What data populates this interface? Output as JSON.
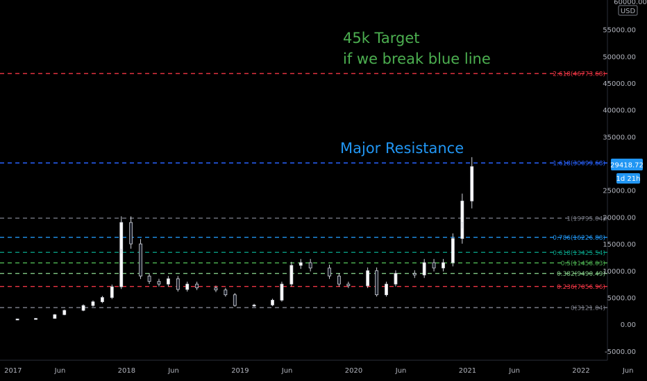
{
  "chart_data": {
    "type": "candlestick",
    "title": "",
    "xlabel": "",
    "ylabel": "",
    "currency_label": "USD",
    "ylim": [
      -6700,
      60500
    ],
    "grid": false,
    "x_ticks": [
      "2017",
      "Jun",
      "2018",
      "Jun",
      "2019",
      "Jun",
      "2020",
      "Jun",
      "2021",
      "Jun",
      "2022",
      "Jun"
    ],
    "y_ticks": [
      "-5000.00",
      "0.00",
      "5000.00",
      "10000.00",
      "15000.00",
      "20000.00",
      "25000.00",
      "35000.00",
      "40000.00",
      "45000.00",
      "50000.00",
      "55000.00"
    ],
    "y_top_tick_partial": "60000.00",
    "price_series": {
      "x": [
        "2017-01",
        "2017-03",
        "2017-05",
        "2017-06",
        "2017-08",
        "2017-09",
        "2017-10",
        "2017-11",
        "2017-12",
        "2017-12",
        "2018-01",
        "2018-02",
        "2018-03",
        "2018-04",
        "2018-05",
        "2018-06",
        "2018-07",
        "2018-08",
        "2018-10",
        "2018-11",
        "2018-12",
        "2019-02",
        "2019-04",
        "2019-05",
        "2019-06",
        "2019-07",
        "2019-08",
        "2019-10",
        "2019-11",
        "2019-12",
        "2020-02",
        "2020-03",
        "2020-04",
        "2020-05",
        "2020-07",
        "2020-08",
        "2020-09",
        "2020-10",
        "2020-11",
        "2020-12",
        "2020-12",
        "2021-01"
      ],
      "values": [
        1000,
        1100,
        1800,
        2600,
        3500,
        4200,
        5000,
        7000,
        14000,
        19000,
        15000,
        9000,
        8000,
        7500,
        8500,
        6500,
        7500,
        6800,
        6400,
        5500,
        3500,
        3600,
        4500,
        7500,
        11000,
        11500,
        10500,
        9000,
        7500,
        7200,
        10000,
        5500,
        7500,
        9500,
        9200,
        11500,
        10500,
        11500,
        16000,
        19000,
        23000,
        29418.72
      ]
    },
    "fib_levels": [
      {
        "label": "2.618(46773.68)",
        "value": 46773.68,
        "color": "#f23645"
      },
      {
        "label": "1.618(30099.68)",
        "value": 30099.68,
        "color": "#2962ff"
      },
      {
        "label": "1(19795.04)",
        "value": 19795.04,
        "color": "#787b86"
      },
      {
        "label": "0.786(16226.88)",
        "value": 16226.88,
        "color": "#2196f3"
      },
      {
        "label": "0.618(13425.54)",
        "value": 13425.54,
        "color": "#089981"
      },
      {
        "label": "0.5(11458.03)",
        "value": 11458.03,
        "color": "#4caf50"
      },
      {
        "label": "0.382(9490.49)",
        "value": 9490.49,
        "color": "#81c784"
      },
      {
        "label": "0.236(7056.96)",
        "value": 7056.96,
        "color": "#f23645"
      },
      {
        "label": "0(3121.04)",
        "value": 3121.04,
        "color": "#787b86"
      }
    ],
    "last_price": "29418.72",
    "countdown": "1d 21h",
    "annotations": [
      {
        "text": "45k Target",
        "color": "#4caf50"
      },
      {
        "text": "if we break blue line",
        "color": "#4caf50"
      },
      {
        "text": "Major Resistance",
        "color": "#2196f3"
      }
    ]
  }
}
